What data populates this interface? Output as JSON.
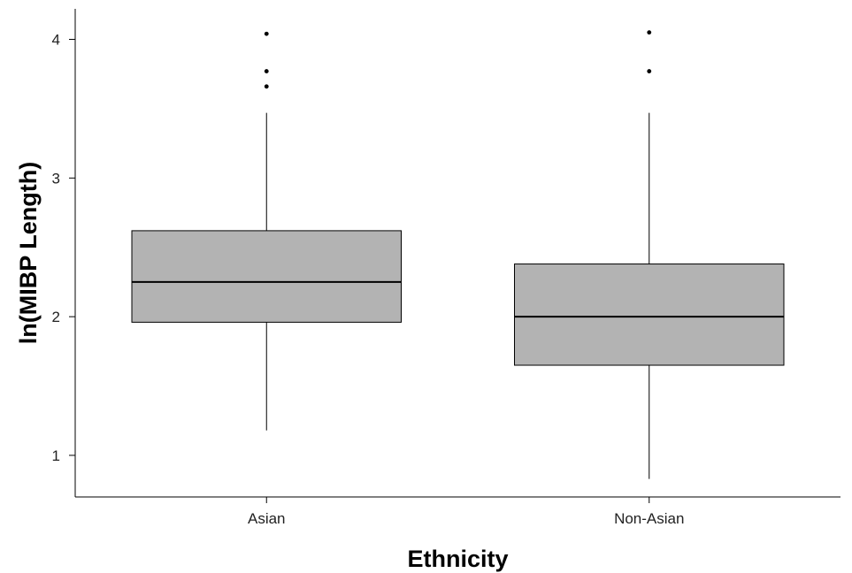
{
  "chart_data": {
    "type": "box",
    "title": "",
    "xlabel": "Ethnicity",
    "ylabel": "ln(MIBP Length)",
    "ylim": [
      0.7,
      4.22
    ],
    "y_ticks": [
      1,
      2,
      3,
      4
    ],
    "grid": false,
    "box_color": "#b3b3b3",
    "categories": [
      "Asian",
      "Non-Asian"
    ],
    "boxes": [
      {
        "category": "Asian",
        "whisker_low": 1.18,
        "q1": 1.96,
        "median": 2.25,
        "q3": 2.62,
        "whisker_high": 3.47,
        "outliers": [
          3.66,
          3.77,
          4.04
        ]
      },
      {
        "category": "Non-Asian",
        "whisker_low": 0.83,
        "q1": 1.65,
        "median": 2.0,
        "q3": 2.38,
        "whisker_high": 3.47,
        "outliers": [
          3.77,
          4.05
        ]
      }
    ]
  }
}
